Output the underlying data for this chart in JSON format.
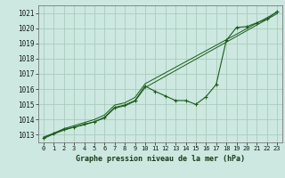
{
  "title": "Graphe pression niveau de la mer (hPa)",
  "bg_color": "#cce8e0",
  "grid_color": "#aaccbb",
  "line_color": "#1a5c1a",
  "xlim": [
    -0.5,
    23.5
  ],
  "ylim": [
    1012.5,
    1021.5
  ],
  "yticks": [
    1013,
    1014,
    1015,
    1016,
    1017,
    1018,
    1019,
    1020,
    1021
  ],
  "xticks": [
    0,
    1,
    2,
    3,
    4,
    5,
    6,
    7,
    8,
    9,
    10,
    11,
    12,
    13,
    14,
    15,
    16,
    17,
    18,
    19,
    20,
    21,
    22,
    23
  ],
  "main_line": [
    [
      0,
      1012.8
    ],
    [
      1,
      1013.1
    ],
    [
      2,
      1013.35
    ],
    [
      3,
      1013.5
    ],
    [
      4,
      1013.7
    ],
    [
      5,
      1013.85
    ],
    [
      6,
      1014.15
    ],
    [
      7,
      1014.8
    ],
    [
      8,
      1014.95
    ],
    [
      9,
      1015.25
    ],
    [
      10,
      1016.2
    ],
    [
      11,
      1015.85
    ],
    [
      12,
      1015.55
    ],
    [
      13,
      1015.25
    ],
    [
      14,
      1015.25
    ],
    [
      15,
      1015.0
    ],
    [
      16,
      1015.5
    ],
    [
      17,
      1016.3
    ],
    [
      18,
      1019.2
    ],
    [
      19,
      1020.05
    ],
    [
      20,
      1020.1
    ],
    [
      21,
      1020.35
    ],
    [
      22,
      1020.6
    ],
    [
      23,
      1021.1
    ]
  ],
  "line2": [
    [
      0,
      1012.85
    ],
    [
      1,
      1013.1
    ],
    [
      2,
      1013.4
    ],
    [
      3,
      1013.6
    ],
    [
      4,
      1013.8
    ],
    [
      5,
      1014.0
    ],
    [
      6,
      1014.3
    ],
    [
      7,
      1014.95
    ],
    [
      8,
      1015.1
    ],
    [
      9,
      1015.45
    ],
    [
      10,
      1016.35
    ],
    [
      23,
      1021.05
    ]
  ],
  "line3": [
    [
      0,
      1012.75
    ],
    [
      1,
      1013.05
    ],
    [
      2,
      1013.3
    ],
    [
      3,
      1013.5
    ],
    [
      4,
      1013.65
    ],
    [
      5,
      1013.85
    ],
    [
      6,
      1014.1
    ],
    [
      7,
      1014.75
    ],
    [
      8,
      1014.9
    ],
    [
      9,
      1015.2
    ],
    [
      10,
      1016.1
    ],
    [
      23,
      1020.95
    ]
  ]
}
